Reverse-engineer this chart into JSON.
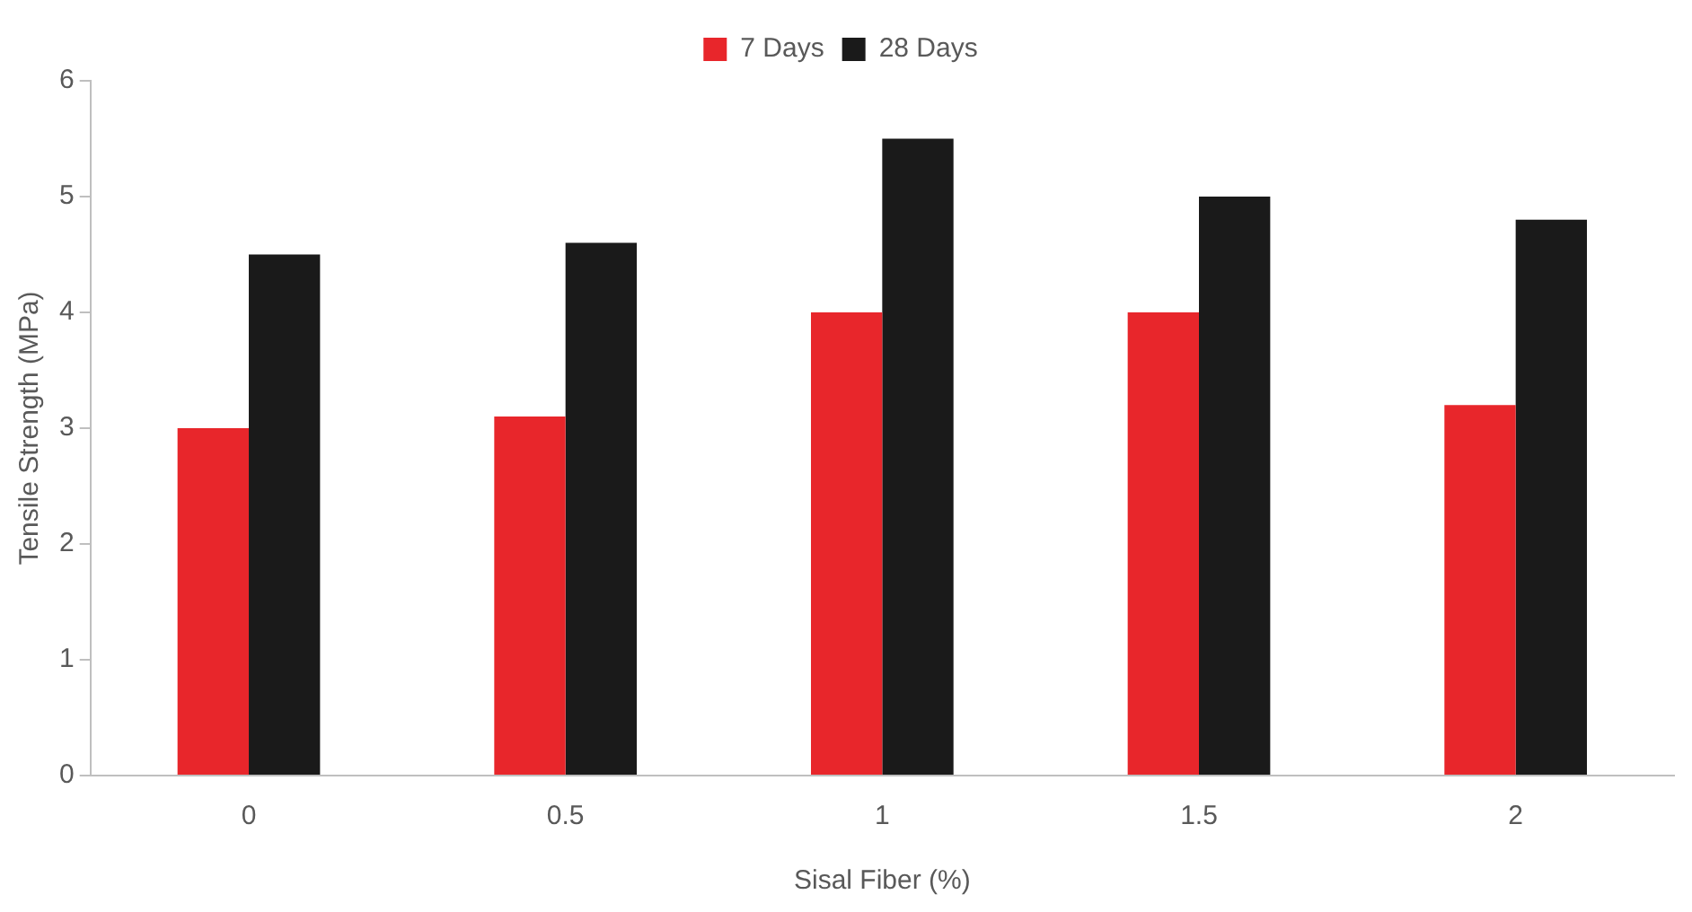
{
  "chart_data": {
    "type": "bar",
    "xlabel": "Sisal Fiber (%)",
    "ylabel": "Tensile Strength (MPa)",
    "categories": [
      "0",
      "0.5",
      "1",
      "1.5",
      "2"
    ],
    "series": [
      {
        "name": "7 Days",
        "color": "#e8262b",
        "values": [
          3.0,
          3.1,
          4.0,
          4.0,
          3.2
        ]
      },
      {
        "name": "28 Days",
        "color": "#1a1a1a",
        "values": [
          4.5,
          4.6,
          5.5,
          5.0,
          4.8
        ]
      }
    ],
    "ylim": [
      0,
      6
    ],
    "yticks": [
      0,
      1,
      2,
      3,
      4,
      5,
      6
    ],
    "grid": false,
    "legend": "top"
  }
}
